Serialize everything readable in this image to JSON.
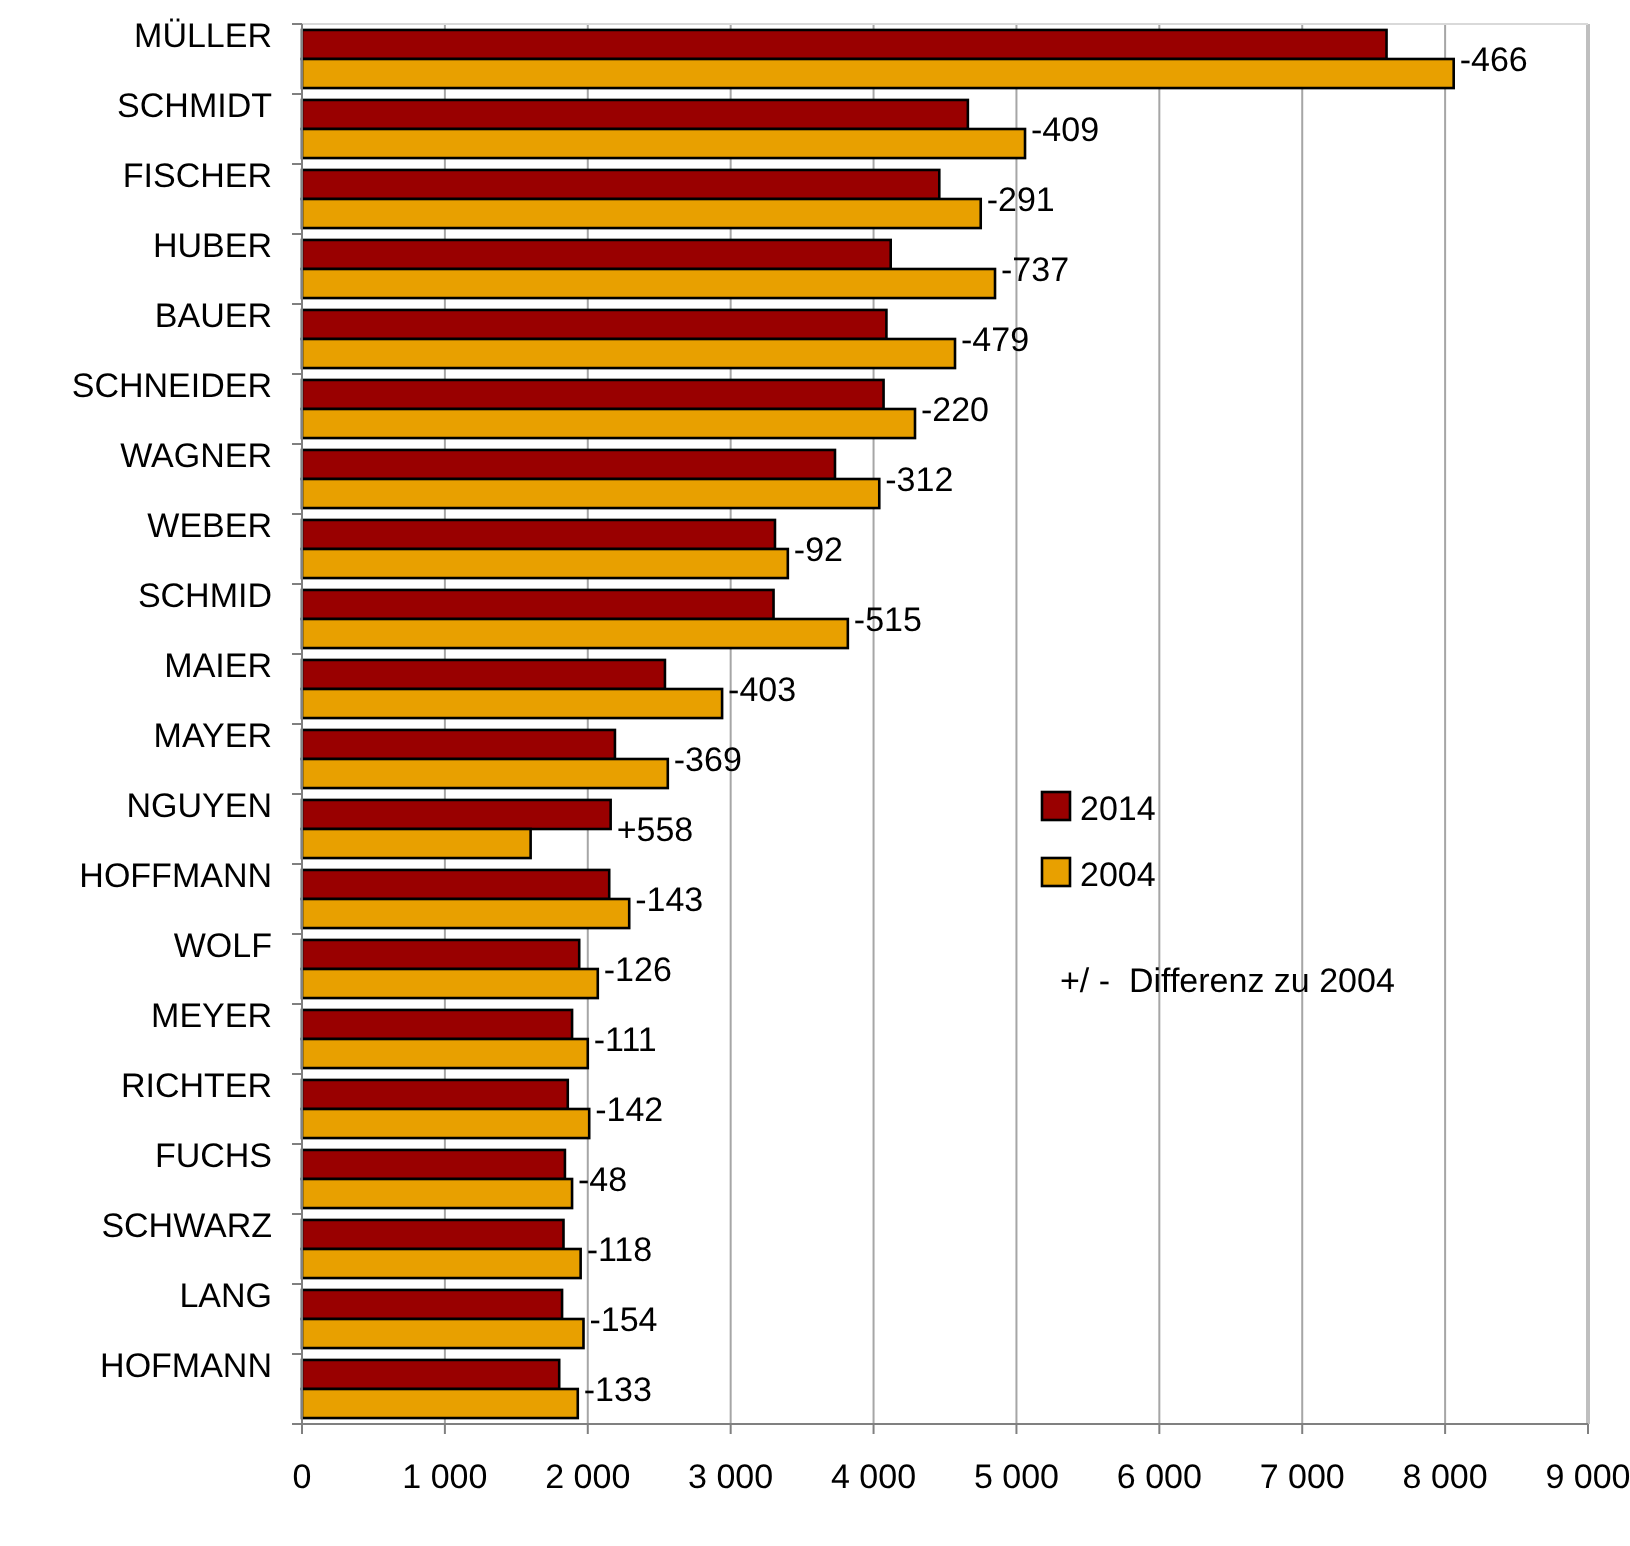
{
  "chart_data": {
    "type": "bar",
    "orientation": "horizontal",
    "categories": [
      "MÜLLER",
      "SCHMIDT",
      "FISCHER",
      "HUBER",
      "BAUER",
      "SCHNEIDER",
      "WAGNER",
      "WEBER",
      "SCHMID",
      "MAIER",
      "MAYER",
      "NGUYEN",
      "HOFFMANN",
      "WOLF",
      "MEYER",
      "RICHTER",
      "FUCHS",
      "SCHWARZ",
      "LANG",
      "HOFMANN"
    ],
    "series": [
      {
        "name": "2014",
        "color": "#990000",
        "values": [
          7590,
          4660,
          4460,
          4120,
          4090,
          4070,
          3730,
          3310,
          3300,
          2540,
          2190,
          2160,
          2150,
          1940,
          1890,
          1860,
          1840,
          1830,
          1820,
          1800
        ]
      },
      {
        "name": "2004",
        "color": "#e8a000",
        "values": [
          8060,
          5060,
          4750,
          4850,
          4570,
          4290,
          4040,
          3400,
          3820,
          2940,
          2560,
          1600,
          2290,
          2070,
          2000,
          2010,
          1890,
          1950,
          1970,
          1930
        ]
      }
    ],
    "xlim": [
      0,
      9000
    ],
    "xticks": [
      {
        "value": 0,
        "label": "0"
      },
      {
        "value": 1000,
        "label": "1 000"
      },
      {
        "value": 2000,
        "label": "2 000"
      },
      {
        "value": 3000,
        "label": "3 000"
      },
      {
        "value": 4000,
        "label": "4 000"
      },
      {
        "value": 5000,
        "label": "5 000"
      },
      {
        "value": 6000,
        "label": "6 000"
      },
      {
        "value": 7000,
        "label": "7 000"
      },
      {
        "value": 8000,
        "label": "8 000"
      },
      {
        "value": 9000,
        "label": "9 000"
      }
    ],
    "grid": "x",
    "legend": "right",
    "annotations": [
      {
        "text": "-466",
        "x": 8060,
        "y": "MÜLLER"
      },
      {
        "text": "-409",
        "x": 5060,
        "y": "SCHMIDT"
      },
      {
        "text": "-291",
        "x": 4750,
        "y": "FISCHER"
      },
      {
        "text": "-737",
        "x": 4850,
        "y": "HUBER"
      },
      {
        "text": "-479",
        "x": 4570,
        "y": "BAUER"
      },
      {
        "text": "-220",
        "x": 4290,
        "y": "SCHNEIDER"
      },
      {
        "text": "-312",
        "x": 4040,
        "y": "WAGNER"
      },
      {
        "text": "-92",
        "x": 3400,
        "y": "WEBER"
      },
      {
        "text": "-515",
        "x": 3820,
        "y": "SCHMID"
      },
      {
        "text": "-403",
        "x": 2940,
        "y": "MAIER"
      },
      {
        "text": "-369",
        "x": 2560,
        "y": "MAYER"
      },
      {
        "text": "+558",
        "x": 2160,
        "y": "NGUYEN"
      },
      {
        "text": "-143",
        "x": 2290,
        "y": "HOFFMANN"
      },
      {
        "text": "-126",
        "x": 2070,
        "y": "WOLF"
      },
      {
        "text": "-111",
        "x": 2000,
        "y": "MEYER"
      },
      {
        "text": "-142",
        "x": 2010,
        "y": "RICHTER"
      },
      {
        "text": "-48",
        "x": 1890,
        "y": "FUCHS"
      },
      {
        "text": "-118",
        "x": 1950,
        "y": "SCHWARZ"
      },
      {
        "text": "-154",
        "x": 1970,
        "y": "LANG"
      },
      {
        "text": "-133",
        "x": 1930,
        "y": "HOFMANN"
      },
      "+/ -  Differenz zu 2004"
    ]
  }
}
